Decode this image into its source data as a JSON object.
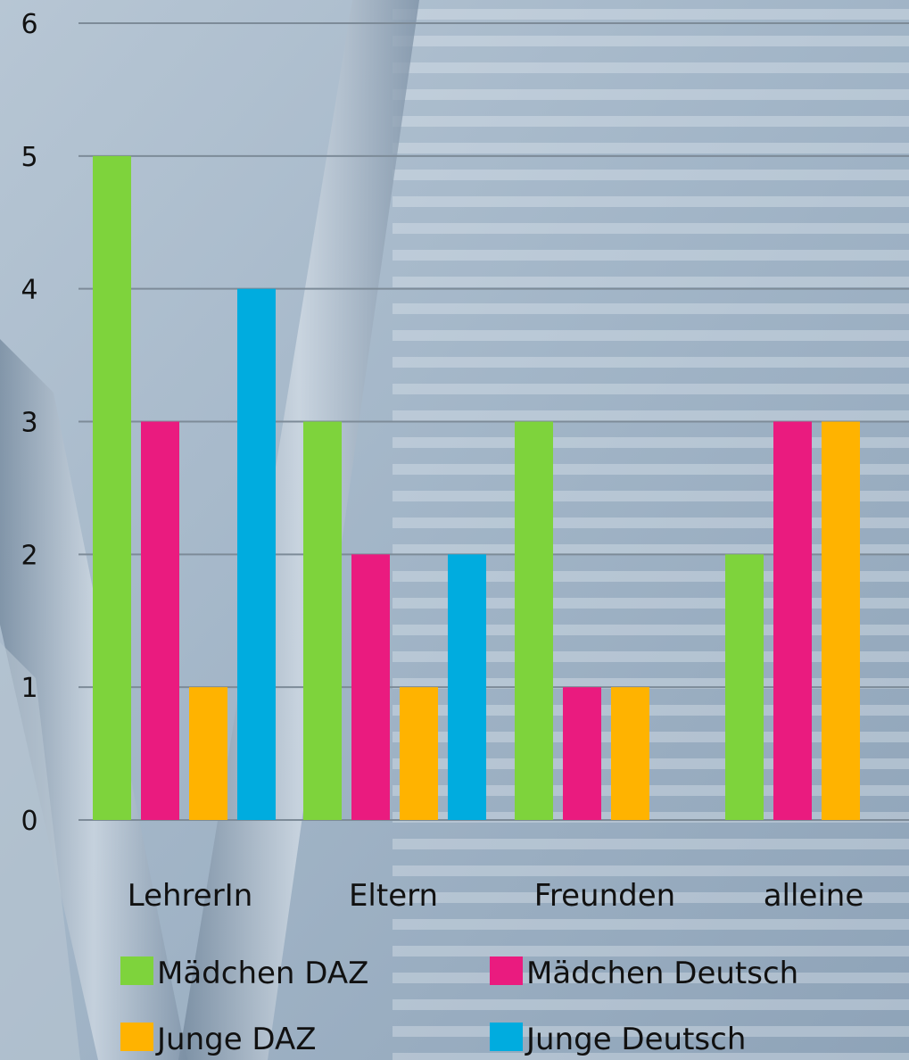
{
  "chart_data": {
    "type": "bar",
    "title": "",
    "xlabel": "",
    "ylabel": "",
    "ylim": [
      0,
      6
    ],
    "yticks": [
      "0",
      "1",
      "2",
      "3",
      "4",
      "5",
      "6"
    ],
    "grid": true,
    "legend_position": "bottom",
    "categories": [
      "LehrerIn",
      "Eltern",
      "Freunden",
      "alleine"
    ],
    "series": [
      {
        "name": "Mädchen DAZ",
        "color": "#7ed33c",
        "values": [
          5,
          3,
          3,
          2
        ]
      },
      {
        "name": "Mädchen Deutsch",
        "color": "#ea1b7f",
        "values": [
          3,
          2,
          1,
          3
        ]
      },
      {
        "name": "Junge DAZ",
        "color": "#ffb300",
        "values": [
          1,
          1,
          1,
          3
        ]
      },
      {
        "name": "Junge Deutsch",
        "color": "#00acdf",
        "values": [
          4,
          2,
          0,
          0
        ]
      }
    ],
    "background_image": "railway-tracks-photo"
  }
}
